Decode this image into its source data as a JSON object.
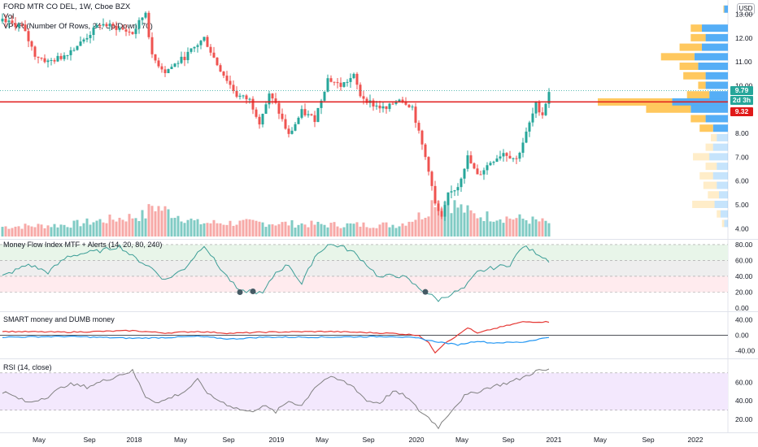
{
  "header": {
    "title": "FORD MTR CO DEL, 1W, Cboe BZX",
    "vol_label": "Vol",
    "vpvr_label": "VPVR (Number Of Rows, 24, Up/Down, 70)",
    "currency": "USD"
  },
  "price_tags": {
    "last": "9.79",
    "countdown": "2d 3h",
    "level": "9.32"
  },
  "colors": {
    "up": "#26a69a",
    "down": "#ef5350",
    "vol_up": "#80cbc4",
    "vol_down": "#f7a9a7",
    "vpvr_up": "#42a5f5",
    "vpvr_down": "#ffc24d",
    "hline": "#e01919",
    "mfi": "#3d9e97",
    "rsi": "#808080",
    "smart": "#e53935",
    "dumb": "#2196f3"
  },
  "chart_data": [
    {
      "type": "candlestick",
      "title": "FORD MTR CO DEL, 1W, Cboe BZX",
      "x_ticks": [
        "May",
        "Sep",
        "2018",
        "May",
        "Sep",
        "2019",
        "May",
        "Sep",
        "2020",
        "May",
        "Sep",
        "2021",
        "May",
        "Sep",
        "2022"
      ],
      "y_ticks": [
        "13.00",
        "12.00",
        "11.00",
        "10.00",
        "9.00",
        "8.00",
        "7.00",
        "6.00",
        "5.00",
        "4.00"
      ],
      "ylim": [
        3.6,
        13.6
      ],
      "horizontal_line": 9.32,
      "last_price": 9.79,
      "close_anchors": [
        [
          0,
          12.7
        ],
        [
          6,
          12.5
        ],
        [
          10,
          11.3
        ],
        [
          14,
          11.0
        ],
        [
          18,
          11.2
        ],
        [
          24,
          11.8
        ],
        [
          30,
          12.6
        ],
        [
          36,
          12.4
        ],
        [
          40,
          12.2
        ],
        [
          44,
          13.1
        ],
        [
          46,
          11.2
        ],
        [
          50,
          10.6
        ],
        [
          56,
          11.2
        ],
        [
          62,
          12.0
        ],
        [
          66,
          10.9
        ],
        [
          72,
          9.6
        ],
        [
          76,
          9.4
        ],
        [
          79,
          8.5
        ],
        [
          82,
          9.6
        ],
        [
          84,
          9.2
        ],
        [
          88,
          7.9
        ],
        [
          92,
          8.9
        ],
        [
          96,
          8.6
        ],
        [
          100,
          10.3
        ],
        [
          104,
          10.0
        ],
        [
          108,
          10.4
        ],
        [
          110,
          9.6
        ],
        [
          114,
          9.2
        ],
        [
          118,
          9.0
        ],
        [
          122,
          9.5
        ],
        [
          126,
          9.1
        ],
        [
          128,
          8.0
        ],
        [
          131,
          6.5
        ],
        [
          133,
          5.0
        ],
        [
          135,
          4.4
        ],
        [
          137,
          5.4
        ],
        [
          140,
          5.8
        ],
        [
          143,
          7.0
        ],
        [
          146,
          6.2
        ],
        [
          150,
          6.8
        ],
        [
          154,
          7.2
        ],
        [
          158,
          6.9
        ],
        [
          161,
          8.0
        ],
        [
          164,
          9.2
        ],
        [
          166,
          8.8
        ],
        [
          168,
          9.79
        ]
      ],
      "volume_anchors": [
        [
          0,
          0.25
        ],
        [
          20,
          0.3
        ],
        [
          44,
          0.55
        ],
        [
          46,
          0.8
        ],
        [
          60,
          0.35
        ],
        [
          80,
          0.35
        ],
        [
          100,
          0.3
        ],
        [
          122,
          0.3
        ],
        [
          130,
          0.6
        ],
        [
          133,
          1.0
        ],
        [
          138,
          0.85
        ],
        [
          145,
          0.55
        ],
        [
          160,
          0.45
        ],
        [
          168,
          0.35
        ]
      ],
      "vpvr_profile": [
        {
          "price": 13.2,
          "up": 0.05,
          "down": 0.01
        },
        {
          "price": 12.4,
          "up": 0.35,
          "down": 0.15
        },
        {
          "price": 12.0,
          "up": 0.3,
          "down": 0.2
        },
        {
          "price": 11.6,
          "up": 0.35,
          "down": 0.3
        },
        {
          "price": 11.2,
          "up": 0.45,
          "down": 0.45
        },
        {
          "price": 10.8,
          "up": 0.4,
          "down": 0.25
        },
        {
          "price": 10.4,
          "up": 0.3,
          "down": 0.3
        },
        {
          "price": 10.0,
          "up": 0.3,
          "down": 0.1
        },
        {
          "price": 9.6,
          "up": 0.25,
          "down": 0.3
        },
        {
          "price": 9.3,
          "up": 0.75,
          "down": 1.0
        },
        {
          "price": 9.0,
          "up": 0.5,
          "down": 0.6
        },
        {
          "price": 8.6,
          "up": 0.3,
          "down": 0.2
        },
        {
          "price": 8.2,
          "up": 0.2,
          "down": 0.18
        },
        {
          "price": 7.8,
          "up": 0.15,
          "down": 0.08
        },
        {
          "price": 7.4,
          "up": 0.2,
          "down": 0.1
        },
        {
          "price": 7.0,
          "up": 0.25,
          "down": 0.22
        },
        {
          "price": 6.6,
          "up": 0.15,
          "down": 0.15
        },
        {
          "price": 6.2,
          "up": 0.2,
          "down": 0.18
        },
        {
          "price": 5.8,
          "up": 0.15,
          "down": 0.18
        },
        {
          "price": 5.4,
          "up": 0.12,
          "down": 0.15
        },
        {
          "price": 5.0,
          "up": 0.18,
          "down": 0.3
        },
        {
          "price": 4.6,
          "up": 0.1,
          "down": 0.05
        },
        {
          "price": 4.2,
          "up": 0.05,
          "down": 0.03
        }
      ]
    },
    {
      "type": "line",
      "title": "Money Flow Index MTF + Alerts (14, 20, 80, 240)",
      "y_ticks": [
        "80.00",
        "60.00",
        "40.00",
        "20.00",
        "0.00"
      ],
      "ylim": [
        0,
        82
      ],
      "bands": [
        60,
        40,
        80,
        20
      ],
      "anchors": [
        [
          0,
          40
        ],
        [
          8,
          55
        ],
        [
          14,
          45
        ],
        [
          20,
          65
        ],
        [
          26,
          70
        ],
        [
          30,
          72
        ],
        [
          36,
          78
        ],
        [
          40,
          65
        ],
        [
          46,
          50
        ],
        [
          50,
          35
        ],
        [
          56,
          50
        ],
        [
          60,
          70
        ],
        [
          62,
          80
        ],
        [
          66,
          55
        ],
        [
          70,
          35
        ],
        [
          73,
          20
        ],
        [
          76,
          22
        ],
        [
          80,
          18
        ],
        [
          84,
          45
        ],
        [
          88,
          55
        ],
        [
          92,
          30
        ],
        [
          96,
          65
        ],
        [
          100,
          80
        ],
        [
          104,
          78
        ],
        [
          108,
          70
        ],
        [
          112,
          55
        ],
        [
          116,
          38
        ],
        [
          120,
          42
        ],
        [
          124,
          38
        ],
        [
          128,
          25
        ],
        [
          131,
          18
        ],
        [
          134,
          10
        ],
        [
          138,
          18
        ],
        [
          142,
          25
        ],
        [
          146,
          45
        ],
        [
          150,
          50
        ],
        [
          156,
          55
        ],
        [
          160,
          78
        ],
        [
          164,
          70
        ],
        [
          168,
          60
        ]
      ],
      "alert_points": [
        73,
        77,
        130
      ]
    },
    {
      "type": "line",
      "title": "SMART money and DUMB money",
      "y_ticks": [
        "40.00",
        "0.00",
        "-40.00"
      ],
      "ylim": [
        -50,
        50
      ],
      "series": [
        {
          "anchors": [
            [
              0,
              10
            ],
            [
              20,
              8
            ],
            [
              40,
              12
            ],
            [
              50,
              6
            ],
            [
              60,
              10
            ],
            [
              70,
              5
            ],
            [
              80,
              8
            ],
            [
              100,
              10
            ],
            [
              120,
              5
            ],
            [
              128,
              0
            ],
            [
              131,
              -20
            ],
            [
              133,
              -45
            ],
            [
              136,
              -20
            ],
            [
              140,
              0
            ],
            [
              143,
              20
            ],
            [
              146,
              5
            ],
            [
              150,
              15
            ],
            [
              160,
              35
            ],
            [
              168,
              35
            ]
          ]
        },
        {
          "anchors": [
            [
              0,
              -5
            ],
            [
              20,
              -3
            ],
            [
              40,
              -8
            ],
            [
              50,
              -6
            ],
            [
              60,
              -3
            ],
            [
              70,
              -10
            ],
            [
              80,
              -5
            ],
            [
              100,
              -5
            ],
            [
              120,
              -3
            ],
            [
              128,
              -8
            ],
            [
              132,
              -15
            ],
            [
              136,
              -20
            ],
            [
              140,
              -25
            ],
            [
              146,
              -15
            ],
            [
              150,
              -20
            ],
            [
              160,
              -18
            ],
            [
              168,
              -5
            ]
          ]
        }
      ]
    },
    {
      "type": "line",
      "title": "RSI (14, close)",
      "y_ticks": [
        "60.00",
        "40.00",
        "20.00"
      ],
      "ylim": [
        8,
        82
      ],
      "bands": [
        70,
        30
      ],
      "anchors": [
        [
          0,
          50
        ],
        [
          8,
          38
        ],
        [
          14,
          45
        ],
        [
          20,
          58
        ],
        [
          26,
          55
        ],
        [
          30,
          60
        ],
        [
          36,
          68
        ],
        [
          40,
          72
        ],
        [
          44,
          45
        ],
        [
          48,
          38
        ],
        [
          56,
          50
        ],
        [
          60,
          62
        ],
        [
          64,
          45
        ],
        [
          68,
          38
        ],
        [
          72,
          32
        ],
        [
          76,
          28
        ],
        [
          80,
          35
        ],
        [
          84,
          28
        ],
        [
          88,
          40
        ],
        [
          92,
          35
        ],
        [
          96,
          55
        ],
        [
          100,
          65
        ],
        [
          104,
          62
        ],
        [
          108,
          55
        ],
        [
          112,
          40
        ],
        [
          116,
          38
        ],
        [
          120,
          50
        ],
        [
          124,
          45
        ],
        [
          128,
          30
        ],
        [
          131,
          22
        ],
        [
          134,
          12
        ],
        [
          138,
          30
        ],
        [
          142,
          45
        ],
        [
          146,
          50
        ],
        [
          150,
          55
        ],
        [
          156,
          60
        ],
        [
          160,
          65
        ],
        [
          164,
          72
        ],
        [
          168,
          73
        ]
      ]
    }
  ]
}
